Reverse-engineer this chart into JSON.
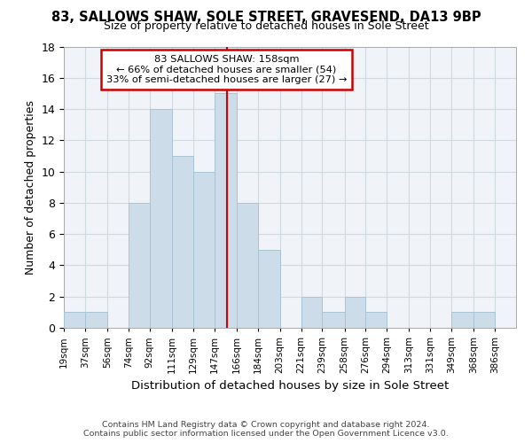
{
  "title": "83, SALLOWS SHAW, SOLE STREET, GRAVESEND, DA13 9BP",
  "subtitle": "Size of property relative to detached houses in Sole Street",
  "xlabel": "Distribution of detached houses by size in Sole Street",
  "ylabel": "Number of detached properties",
  "footer_line1": "Contains HM Land Registry data © Crown copyright and database right 2024.",
  "footer_line2": "Contains public sector information licensed under the Open Government Licence v3.0.",
  "bar_edges": [
    19,
    37,
    56,
    74,
    92,
    111,
    129,
    147,
    166,
    184,
    203,
    221,
    239,
    258,
    276,
    294,
    313,
    331,
    349,
    368,
    386
  ],
  "bar_heights": [
    1,
    1,
    0,
    8,
    14,
    11,
    10,
    15,
    8,
    5,
    0,
    2,
    1,
    2,
    1,
    0,
    0,
    0,
    1,
    1
  ],
  "bar_color": "#ccdce8",
  "bar_edgecolor": "#a8c4d4",
  "grid_color": "#d0d8e0",
  "property_line_x": 158,
  "property_line_color": "#cc0000",
  "annotation_text": "83 SALLOWS SHAW: 158sqm\n← 66% of detached houses are smaller (54)\n33% of semi-detached houses are larger (27) →",
  "annotation_box_edgecolor": "#cc0000",
  "annotation_box_facecolor": "#ffffff",
  "ylim": [
    0,
    18
  ],
  "yticks": [
    0,
    2,
    4,
    6,
    8,
    10,
    12,
    14,
    16,
    18
  ],
  "x_tick_labels": [
    "19sqm",
    "37sqm",
    "56sqm",
    "74sqm",
    "92sqm",
    "111sqm",
    "129sqm",
    "147sqm",
    "166sqm",
    "184sqm",
    "203sqm",
    "221sqm",
    "239sqm",
    "258sqm",
    "276sqm",
    "294sqm",
    "313sqm",
    "331sqm",
    "349sqm",
    "368sqm",
    "386sqm"
  ],
  "background_color": "#f0f4f8"
}
